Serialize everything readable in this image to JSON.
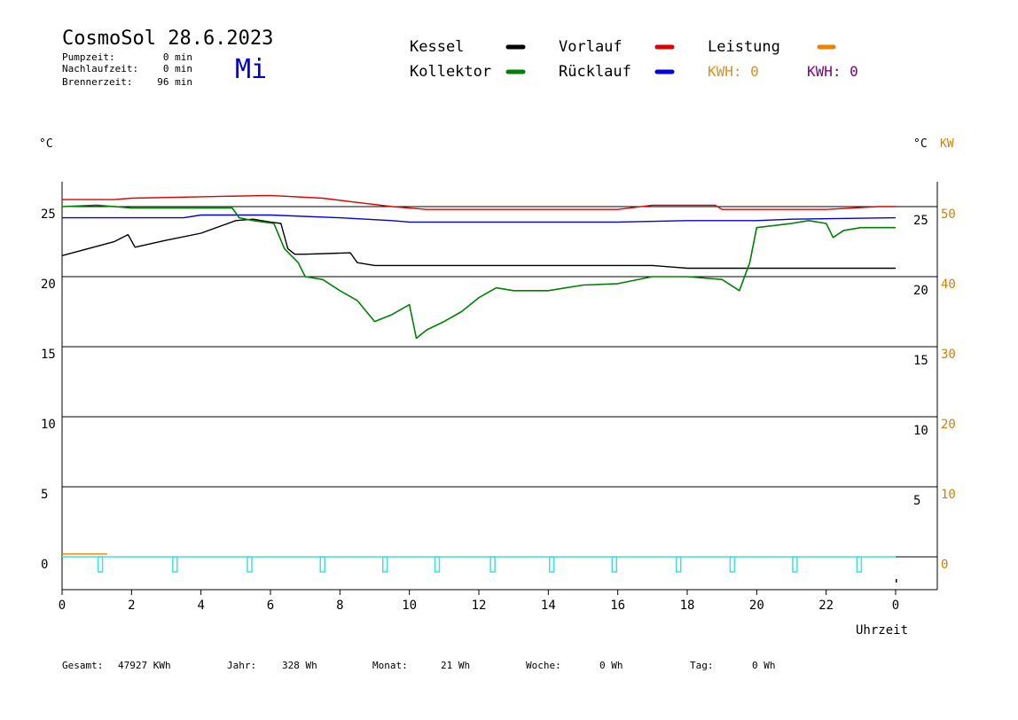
{
  "header": {
    "title": "CosmoSol 28.6.2023",
    "weekday": "Mi",
    "stats": [
      {
        "label": "Pumpzeit:",
        "value": "0 min"
      },
      {
        "label": "Nachlaufzeit:",
        "value": "0 min"
      },
      {
        "label": "Brennerzeit:",
        "value": "96 min"
      }
    ]
  },
  "legend": {
    "items": [
      {
        "label": "Kessel",
        "color": "#000000"
      },
      {
        "label": "Vorlauf",
        "color": "#e00000"
      },
      {
        "label": "Leistung",
        "color": "#f08000"
      },
      {
        "label": "Kollektor",
        "color": "#008000"
      },
      {
        "label": "Rücklauf",
        "color": "#0000e0"
      }
    ],
    "kwh": [
      {
        "label": "KWH: 0",
        "color": "#e09020"
      },
      {
        "label": "KWH: 0",
        "color": "#800080"
      }
    ]
  },
  "footer": {
    "items": [
      {
        "label": "Gesamt:",
        "value": "47927 KWh"
      },
      {
        "label": "Jahr:",
        "value": "328 Wh"
      },
      {
        "label": "Monat:",
        "value": "21 Wh"
      },
      {
        "label": "Woche:",
        "value": "0 Wh"
      },
      {
        "label": "Tag:",
        "value": "0 Wh"
      }
    ]
  },
  "chart_data": {
    "type": "line",
    "xlabel": "Uhrzeit",
    "ylabel_left": "°C",
    "ylabel_right": "°C",
    "ylabel_right2": "KW",
    "xlim": [
      0,
      24
    ],
    "ylim_left": [
      -2,
      27
    ],
    "x_ticks": [
      "0",
      "2",
      "4",
      "6",
      "8",
      "10",
      "12",
      "14",
      "16",
      "18",
      "20",
      "22",
      "0"
    ],
    "y_left_ticks": [
      "0",
      "5",
      "10",
      "15",
      "20",
      "25"
    ],
    "y_right_inner_ticks": [
      "5",
      "10",
      "15",
      "20",
      "25"
    ],
    "y_right_outer_ticks": [
      "0",
      "10",
      "20",
      "30",
      "40",
      "50"
    ],
    "grid": true,
    "series": [
      {
        "name": "Vorlauf",
        "color": "#e00000",
        "points": [
          [
            0,
            25.5
          ],
          [
            1.5,
            25.5
          ],
          [
            2,
            25.6
          ],
          [
            4,
            25.7
          ],
          [
            6,
            25.8
          ],
          [
            7.5,
            25.6
          ],
          [
            8.5,
            25.3
          ],
          [
            9.5,
            25.0
          ],
          [
            10.5,
            24.8
          ],
          [
            14,
            24.8
          ],
          [
            16,
            24.8
          ],
          [
            17.0,
            25.1
          ],
          [
            18.8,
            25.1
          ],
          [
            19.0,
            24.8
          ],
          [
            22,
            24.8
          ],
          [
            23.5,
            25.0
          ],
          [
            24,
            25.0
          ]
        ]
      },
      {
        "name": "Rücklauf",
        "color": "#0000e0",
        "points": [
          [
            0,
            24.2
          ],
          [
            3.5,
            24.2
          ],
          [
            4,
            24.4
          ],
          [
            6,
            24.4
          ],
          [
            8,
            24.2
          ],
          [
            9.5,
            24.0
          ],
          [
            10,
            23.9
          ],
          [
            16,
            23.9
          ],
          [
            18,
            24.0
          ],
          [
            20,
            24.0
          ],
          [
            21,
            24.1
          ],
          [
            24,
            24.2
          ]
        ]
      },
      {
        "name": "Kessel",
        "color": "#000000",
        "points": [
          [
            0,
            21.5
          ],
          [
            1.5,
            22.5
          ],
          [
            1.9,
            23.0
          ],
          [
            2.1,
            22.1
          ],
          [
            3,
            22.6
          ],
          [
            4,
            23.1
          ],
          [
            5,
            24.0
          ],
          [
            5.5,
            24.1
          ],
          [
            6,
            23.9
          ],
          [
            6.3,
            23.8
          ],
          [
            6.5,
            22.0
          ],
          [
            6.7,
            21.6
          ],
          [
            7,
            21.6
          ],
          [
            8.3,
            21.7
          ],
          [
            8.5,
            21.0
          ],
          [
            9,
            20.8
          ],
          [
            17,
            20.8
          ],
          [
            18,
            20.6
          ],
          [
            24,
            20.6
          ]
        ]
      },
      {
        "name": "Kollektor",
        "color": "#008000",
        "points": [
          [
            0,
            25.0
          ],
          [
            1,
            25.1
          ],
          [
            2,
            24.9
          ],
          [
            4,
            24.9
          ],
          [
            4.9,
            24.9
          ],
          [
            5.1,
            24.2
          ],
          [
            5.5,
            24.0
          ],
          [
            6.1,
            23.8
          ],
          [
            6.4,
            22.0
          ],
          [
            6.8,
            21.0
          ],
          [
            7,
            20.0
          ],
          [
            7.5,
            19.8
          ],
          [
            8,
            19.0
          ],
          [
            8.5,
            18.3
          ],
          [
            9,
            16.8
          ],
          [
            9.5,
            17.3
          ],
          [
            10,
            18.0
          ],
          [
            10.2,
            15.6
          ],
          [
            10.5,
            16.2
          ],
          [
            11,
            16.8
          ],
          [
            11.5,
            17.5
          ],
          [
            12,
            18.5
          ],
          [
            12.5,
            19.2
          ],
          [
            13,
            19.0
          ],
          [
            14,
            19.0
          ],
          [
            15,
            19.4
          ],
          [
            16,
            19.5
          ],
          [
            17,
            20.0
          ],
          [
            18,
            20.0
          ],
          [
            19,
            19.8
          ],
          [
            19.5,
            19.0
          ],
          [
            19.8,
            21.0
          ],
          [
            20,
            23.5
          ],
          [
            21,
            23.8
          ],
          [
            21.5,
            24.0
          ],
          [
            22,
            23.8
          ],
          [
            22.2,
            22.8
          ],
          [
            22.5,
            23.3
          ],
          [
            23,
            23.5
          ],
          [
            24,
            23.5
          ]
        ]
      },
      {
        "name": "Leistung",
        "color": "#f08000",
        "points": [
          [
            0,
            0.2
          ],
          [
            1.3,
            0.2
          ]
        ]
      }
    ],
    "pump_markers": {
      "color": "#40e0e0",
      "x": [
        1.1,
        3.25,
        5.4,
        7.5,
        9.3,
        10.8,
        12.4,
        14.1,
        15.9,
        17.75,
        19.3,
        21.1,
        22.95
      ]
    }
  }
}
